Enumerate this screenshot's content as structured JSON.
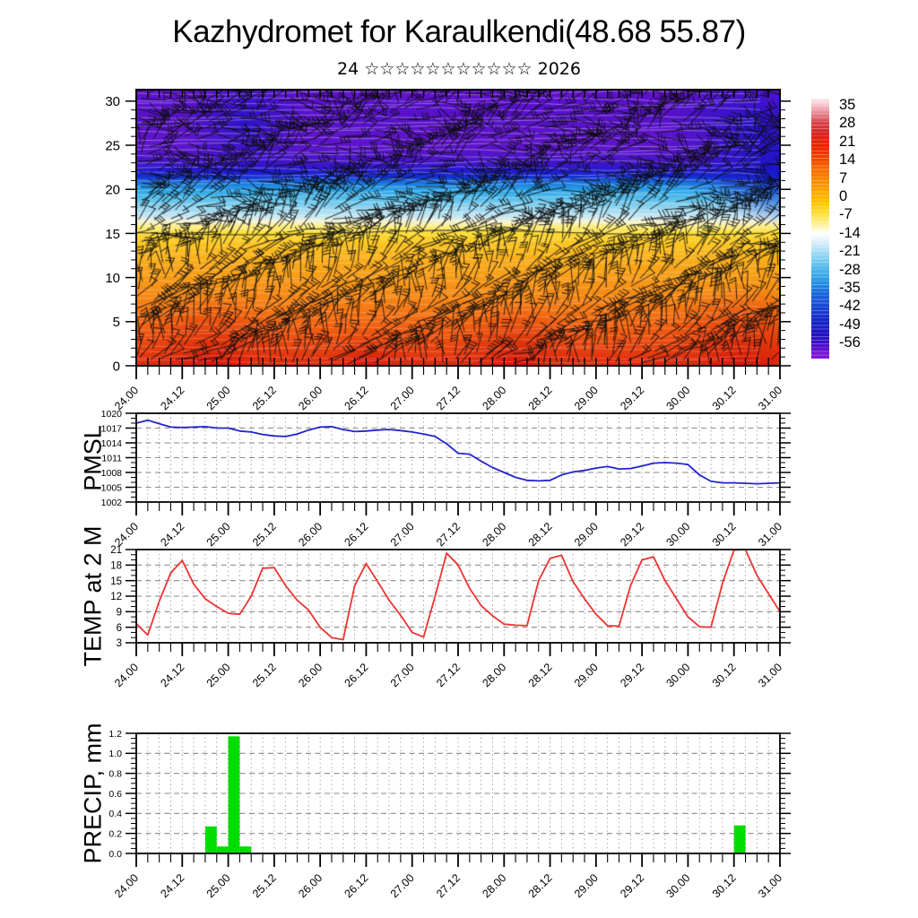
{
  "title": "Kazhydromet for Karaulkendi(48.68 55.87)",
  "subtitle": "24 ☆☆☆☆☆☆☆☆☆☆☆ 2026",
  "x_axis": {
    "tick_labels": [
      "24.00",
      "24.12",
      "25.00",
      "25.12",
      "26.00",
      "26.12",
      "27.00",
      "27.12",
      "28.00",
      "28.12",
      "29.00",
      "29.12",
      "30.00",
      "30.12",
      "31.00"
    ],
    "minor_step_hours": 3,
    "label_step_hours": 12,
    "total_hours": 168
  },
  "chart_data": [
    {
      "type": "heatmap",
      "name": "temperature-cross-section",
      "title": "vertical temperature cross-section with wind barbs",
      "ylim": [
        0,
        31.3
      ],
      "y_tick_labels": [
        0,
        5,
        10,
        15,
        20,
        25,
        30
      ],
      "wind_barbs": true,
      "colorbar_labels": [
        35,
        28,
        21,
        14,
        7,
        0,
        -7,
        -14,
        -21,
        -28,
        -35,
        -42,
        -49,
        -56
      ],
      "colorbar_stops": [
        {
          "f": 0.0,
          "c": "#fbe8ec"
        },
        {
          "f": 0.024,
          "c": "#f6c6cd"
        },
        {
          "f": 0.06,
          "c": "#e5808a"
        },
        {
          "f": 0.095,
          "c": "#d84048"
        },
        {
          "f": 0.13,
          "c": "#d62a2a"
        },
        {
          "f": 0.165,
          "c": "#e41f04"
        },
        {
          "f": 0.2,
          "c": "#ea3000"
        },
        {
          "f": 0.235,
          "c": "#f14a00"
        },
        {
          "f": 0.27,
          "c": "#f66a00"
        },
        {
          "f": 0.306,
          "c": "#f98400"
        },
        {
          "f": 0.34,
          "c": "#fb9c00"
        },
        {
          "f": 0.376,
          "c": "#fdb400"
        },
        {
          "f": 0.41,
          "c": "#fdcc08"
        },
        {
          "f": 0.446,
          "c": "#fee143"
        },
        {
          "f": 0.48,
          "c": "#fef08f"
        },
        {
          "f": 0.505,
          "c": "#fffbd8"
        },
        {
          "f": 0.52,
          "c": "#ffffff"
        },
        {
          "f": 0.55,
          "c": "#dcf0fa"
        },
        {
          "f": 0.587,
          "c": "#abddf4"
        },
        {
          "f": 0.62,
          "c": "#7bcdef"
        },
        {
          "f": 0.657,
          "c": "#4db5ea"
        },
        {
          "f": 0.69,
          "c": "#2fa0e5"
        },
        {
          "f": 0.727,
          "c": "#1f7fdf"
        },
        {
          "f": 0.76,
          "c": "#1b60d8"
        },
        {
          "f": 0.798,
          "c": "#1a48d2"
        },
        {
          "f": 0.83,
          "c": "#1834cc"
        },
        {
          "f": 0.868,
          "c": "#1722c6"
        },
        {
          "f": 0.9,
          "c": "#1d14c2"
        },
        {
          "f": 0.938,
          "c": "#3b10c6"
        },
        {
          "f": 0.97,
          "c": "#6b12d2"
        },
        {
          "f": 1.0,
          "c": "#8418da"
        }
      ],
      "level_colors": [
        {
          "level": 0,
          "color": "#dd2810"
        },
        {
          "level": 2,
          "color": "#e84410"
        },
        {
          "level": 4,
          "color": "#f05c10"
        },
        {
          "level": 6,
          "color": "#f47414"
        },
        {
          "level": 8,
          "color": "#f68a16"
        },
        {
          "level": 10,
          "color": "#f89c18"
        },
        {
          "level": 12,
          "color": "#faae1c"
        },
        {
          "level": 14,
          "color": "#fcc824"
        },
        {
          "level": 15,
          "color": "#fddc34"
        },
        {
          "level": 15.8,
          "color": "#feef86"
        },
        {
          "level": 16.4,
          "color": "#f2f2d8"
        },
        {
          "level": 17,
          "color": "#c2e6f4"
        },
        {
          "level": 18,
          "color": "#8fd4f0"
        },
        {
          "level": 19,
          "color": "#55bfec"
        },
        {
          "level": 20,
          "color": "#28a0e6"
        },
        {
          "level": 20.8,
          "color": "#1b72dc"
        },
        {
          "level": 21.4,
          "color": "#1430d2"
        },
        {
          "level": 22.2,
          "color": "#2518d0"
        },
        {
          "level": 23,
          "color": "#4316ca"
        },
        {
          "level": 24.5,
          "color": "#5a14c8"
        },
        {
          "level": 26,
          "color": "#6014ce"
        },
        {
          "level": 28,
          "color": "#5712c6"
        },
        {
          "level": 30,
          "color": "#5c10d0"
        },
        {
          "level": 31.3,
          "color": "#6314c6"
        }
      ],
      "hot_spots": [
        {
          "x_frac": 0.12,
          "h_lev": 4.5
        },
        {
          "x_frac": 0.36,
          "h_lev": 2.5
        },
        {
          "x_frac": 0.59,
          "h_lev": 4.0
        },
        {
          "x_frac": 0.94,
          "h_lev": 5.0
        }
      ],
      "cold_spots": [
        {
          "x_frac": 0.955,
          "lev": 26.5,
          "r": 95
        },
        {
          "x_frac": 0.99,
          "lev": 23,
          "r": 70
        },
        {
          "x_frac": 0.17,
          "lev": 27.5,
          "r": 70
        }
      ]
    },
    {
      "type": "line",
      "name": "pmsl",
      "ylabel": "PMSL",
      "color": "#2323cc",
      "ylim": [
        1002,
        1020
      ],
      "ytick_step": 3,
      "time_step_hours": 3,
      "values": [
        1018.0,
        1018.6,
        1017.9,
        1017.2,
        1017.1,
        1017.2,
        1017.3,
        1017.0,
        1017.0,
        1016.4,
        1016.2,
        1015.7,
        1015.4,
        1015.3,
        1015.8,
        1016.6,
        1017.2,
        1017.3,
        1016.7,
        1016.3,
        1016.4,
        1016.6,
        1016.7,
        1016.5,
        1016.2,
        1015.8,
        1015.3,
        1013.8,
        1011.9,
        1011.7,
        1010.3,
        1009.0,
        1008.0,
        1007.0,
        1006.4,
        1006.3,
        1006.4,
        1007.5,
        1008.1,
        1008.4,
        1008.9,
        1009.2,
        1008.7,
        1008.8,
        1009.3,
        1009.9,
        1010.0,
        1009.9,
        1009.6,
        1007.5,
        1006.2,
        1005.9,
        1005.9,
        1005.8,
        1005.7,
        1005.8,
        1005.9
      ]
    },
    {
      "type": "line",
      "name": "temp2m",
      "ylabel": "TEMP at 2 M",
      "color": "#ee3333",
      "ylim": [
        3,
        21
      ],
      "ytick_step": 3,
      "time_step_hours": 3,
      "values": [
        6.7,
        4.5,
        11.0,
        16.5,
        18.9,
        14.3,
        11.5,
        10.0,
        8.7,
        8.5,
        12.0,
        17.4,
        17.5,
        14.0,
        11.2,
        9.3,
        6.0,
        4.0,
        3.6,
        14.0,
        18.3,
        14.8,
        11.2,
        8.3,
        5.0,
        4.1,
        12.0,
        20.3,
        18.0,
        13.5,
        10.2,
        8.2,
        6.6,
        6.4,
        6.3,
        15.0,
        19.3,
        19.9,
        14.8,
        11.5,
        8.5,
        6.3,
        6.2,
        14.0,
        19.0,
        19.6,
        15.0,
        11.5,
        8.0,
        6.1,
        6.0,
        14.5,
        20.9,
        21.0,
        16.0,
        12.5,
        9.0
      ]
    },
    {
      "type": "bar",
      "name": "precip",
      "ylabel": "PRECIP, mm",
      "color": "#00dd00",
      "ylim": [
        0,
        1.2
      ],
      "ytick_step": 0.2,
      "time_step_hours": 3,
      "values": [
        0,
        0,
        0,
        0,
        0,
        0,
        0.27,
        0.07,
        1.17,
        0.07,
        0,
        0,
        0,
        0,
        0,
        0,
        0,
        0,
        0,
        0,
        0,
        0,
        0,
        0,
        0,
        0,
        0,
        0,
        0,
        0,
        0,
        0,
        0,
        0,
        0,
        0,
        0,
        0,
        0,
        0,
        0,
        0,
        0,
        0,
        0,
        0,
        0,
        0,
        0,
        0,
        0,
        0,
        0.28,
        0,
        0,
        0
      ]
    }
  ]
}
